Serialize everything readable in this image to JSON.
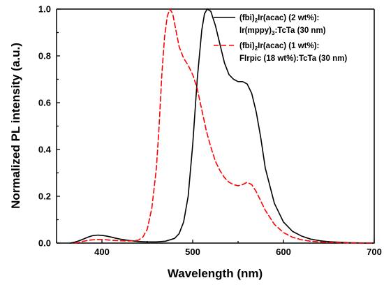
{
  "chart_data": {
    "type": "line",
    "title": "",
    "xlabel": "Wavelength (nm)",
    "ylabel": "Normalized PL intensity (a.u.)",
    "xlim": [
      350,
      700
    ],
    "ylim": [
      0,
      1.0
    ],
    "xticks": [
      400,
      500,
      600,
      700
    ],
    "xtick_labels": [
      "400",
      "500",
      "600",
      "700"
    ],
    "yticks": [
      0.0,
      0.2,
      0.4,
      0.6,
      0.8,
      1.0
    ],
    "ytick_labels": [
      "0.0",
      "0.2",
      "0.4",
      "0.6",
      "0.8",
      "1.0"
    ],
    "grid": false,
    "legend_position": "top-right",
    "series": [
      {
        "name": "(fbi)2Ir(acac) (2 wt%): Ir(mppy)3:TcTa (30 nm)",
        "legend_lines": [
          {
            "prefix": "(fbi)",
            "sub": "2",
            "suffix": "Ir(acac) (2 wt%):"
          },
          {
            "prefix": "Ir(mppy)",
            "sub": "3",
            "suffix": ":TcTa (30 nm)"
          }
        ],
        "color": "#000000",
        "dash": "solid",
        "x": [
          365,
          370,
          375,
          380,
          385,
          390,
          395,
          400,
          405,
          410,
          415,
          420,
          430,
          440,
          450,
          460,
          470,
          480,
          485,
          490,
          495,
          500,
          505,
          510,
          513,
          516,
          520,
          525,
          530,
          535,
          540,
          545,
          550,
          555,
          560,
          565,
          570,
          575,
          580,
          590,
          600,
          610,
          620,
          630,
          640,
          650,
          660,
          670,
          680,
          690,
          700
        ],
        "y": [
          0.0,
          0.004,
          0.01,
          0.018,
          0.026,
          0.032,
          0.034,
          0.033,
          0.03,
          0.026,
          0.021,
          0.017,
          0.011,
          0.007,
          0.005,
          0.005,
          0.008,
          0.02,
          0.04,
          0.09,
          0.2,
          0.42,
          0.7,
          0.91,
          0.98,
          1.0,
          0.99,
          0.93,
          0.85,
          0.77,
          0.72,
          0.7,
          0.69,
          0.69,
          0.68,
          0.64,
          0.56,
          0.45,
          0.32,
          0.17,
          0.09,
          0.05,
          0.03,
          0.017,
          0.01,
          0.006,
          0.004,
          0.002,
          0.001,
          0.0,
          0.0
        ]
      },
      {
        "name": "(fbi)2Ir(acac) (1 wt%): FIrpic (18 wt%):TcTa (30 nm)",
        "legend_lines": [
          {
            "prefix": "(fbi)",
            "sub": "2",
            "suffix": "Ir(acac) (1 wt%):"
          },
          {
            "prefix": "FIrpic (18 wt%):TcTa (30 nm)",
            "sub": "",
            "suffix": ""
          }
        ],
        "color": "#ff0000",
        "dash": "dashed",
        "x": [
          370,
          375,
          380,
          385,
          390,
          395,
          400,
          405,
          410,
          420,
          430,
          440,
          445,
          450,
          455,
          460,
          463,
          466,
          469,
          472,
          475,
          478,
          481,
          485,
          490,
          495,
          500,
          505,
          510,
          515,
          520,
          525,
          530,
          535,
          540,
          545,
          550,
          555,
          560,
          565,
          570,
          575,
          580,
          590,
          600,
          610,
          620,
          630,
          640,
          650,
          660,
          670,
          680,
          690,
          700
        ],
        "y": [
          0.0,
          0.003,
          0.008,
          0.012,
          0.014,
          0.015,
          0.015,
          0.014,
          0.012,
          0.01,
          0.009,
          0.012,
          0.025,
          0.06,
          0.15,
          0.32,
          0.5,
          0.72,
          0.88,
          0.97,
          1.0,
          0.98,
          0.92,
          0.84,
          0.79,
          0.76,
          0.72,
          0.66,
          0.57,
          0.48,
          0.41,
          0.35,
          0.31,
          0.28,
          0.26,
          0.25,
          0.245,
          0.25,
          0.26,
          0.25,
          0.22,
          0.18,
          0.14,
          0.08,
          0.045,
          0.025,
          0.014,
          0.008,
          0.005,
          0.003,
          0.002,
          0.001,
          0.0,
          0.0,
          0.0
        ]
      }
    ]
  }
}
